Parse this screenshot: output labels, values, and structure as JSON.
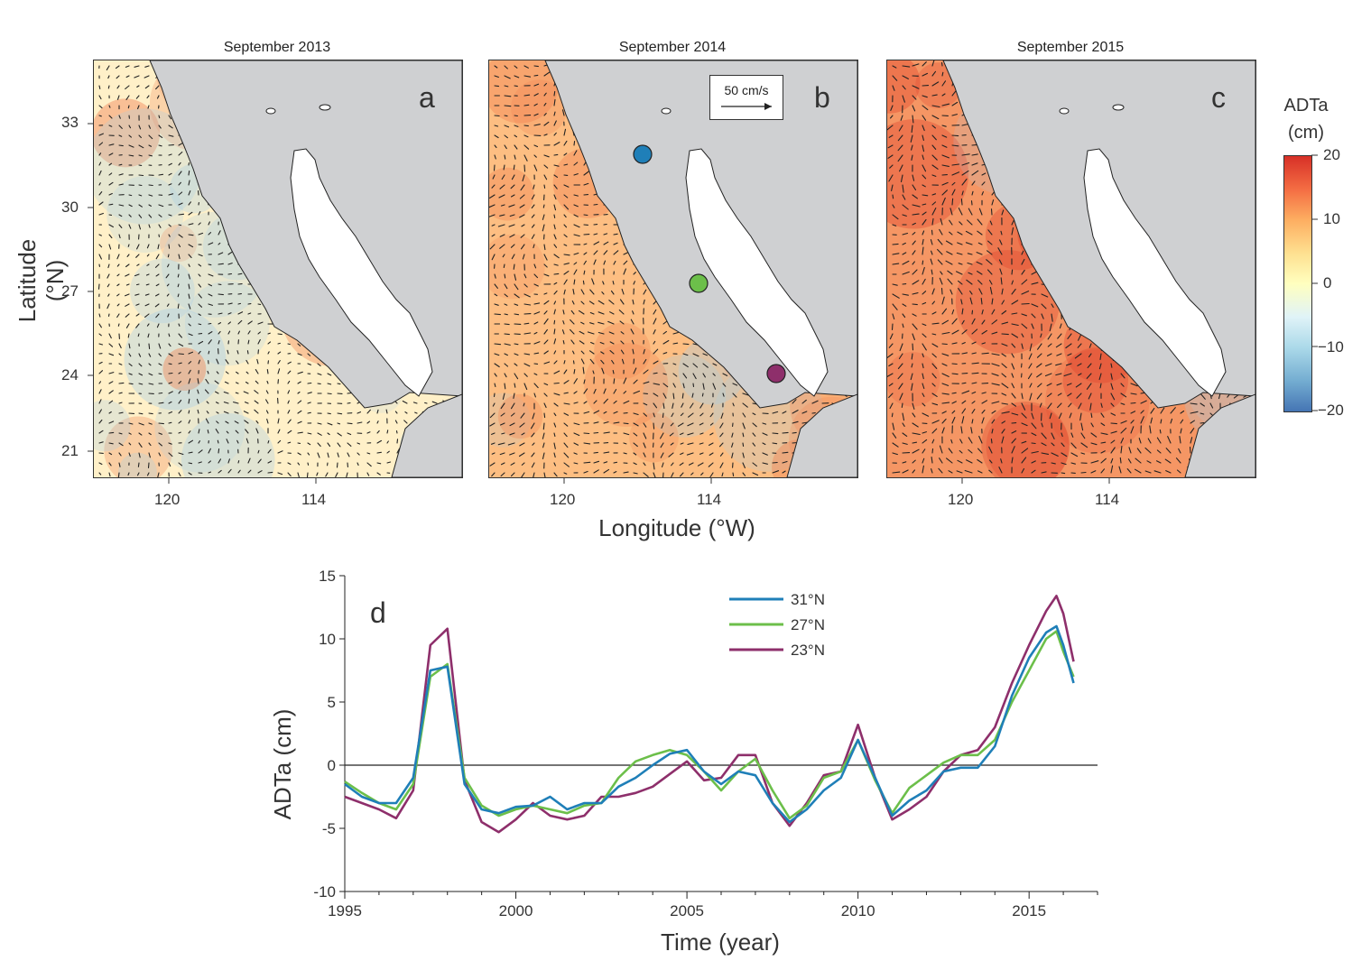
{
  "maps": {
    "panels": [
      {
        "title": "September 2013",
        "letter": "a"
      },
      {
        "title": "September 2014",
        "letter": "b"
      },
      {
        "title": "September 2015",
        "letter": "c"
      }
    ],
    "y_label": "Latitude (°N)",
    "x_label": "Longitude (°W)",
    "lat_ticks": [
      "33",
      "30",
      "27",
      "24",
      "21"
    ],
    "lon_ticks": [
      "120",
      "114"
    ],
    "scale_arrow_label": "50 cm/s",
    "colorbar": {
      "title_line1": "ADTa",
      "title_line2": "(cm)",
      "ticks": [
        "20",
        "10",
        "0",
        "−10",
        "−20"
      ],
      "colors": [
        "#d73027",
        "#f46d43",
        "#fdae61",
        "#fee090",
        "#ffffbf",
        "#e0f3f8",
        "#abd9e9",
        "#74add1",
        "#4575b4"
      ]
    },
    "station_colors": [
      "#1f7fb8",
      "#6cbf4a",
      "#8e2f6b"
    ],
    "land_color": "#cfd0d2"
  },
  "chart_data": {
    "type": "line",
    "panel_letter": "d",
    "xlabel": "Time (year)",
    "ylabel": "ADTa (cm)",
    "xlim": [
      1995,
      2017
    ],
    "ylim": [
      -10,
      15
    ],
    "x_ticks": [
      1995,
      2000,
      2005,
      2010,
      2015
    ],
    "y_ticks": [
      15,
      10,
      5,
      0,
      -5,
      -10
    ],
    "legend": "top-center",
    "series": [
      {
        "name": "31°N",
        "color": "#1f7fb8",
        "x": [
          1995,
          1995.5,
          1996,
          1996.5,
          1997,
          1997.5,
          1998,
          1998.5,
          1999,
          1999.5,
          2000,
          2000.5,
          2001,
          2001.5,
          2002,
          2002.5,
          2003,
          2003.5,
          2004,
          2004.5,
          2005,
          2005.5,
          2006,
          2006.5,
          2007,
          2007.5,
          2008,
          2008.5,
          2009,
          2009.5,
          2010,
          2010.5,
          2011,
          2011.5,
          2012,
          2012.5,
          2013,
          2013.5,
          2014,
          2014.5,
          2015,
          2015.5,
          2015.8,
          2016,
          2016.3
        ],
        "values": [
          -1.5,
          -2.5,
          -3.0,
          -3.0,
          -1.0,
          7.5,
          7.8,
          -1.5,
          -3.5,
          -3.8,
          -3.3,
          -3.2,
          -2.5,
          -3.5,
          -3.0,
          -3.0,
          -1.7,
          -1.0,
          0.0,
          0.9,
          1.2,
          -0.5,
          -1.5,
          -0.5,
          -0.8,
          -3.0,
          -4.5,
          -3.5,
          -2.0,
          -1.0,
          2.0,
          -1.0,
          -4.0,
          -2.8,
          -2.0,
          -0.5,
          -0.2,
          -0.2,
          1.5,
          5.5,
          8.5,
          10.5,
          11.0,
          9.5,
          6.5
        ]
      },
      {
        "name": "27°N",
        "color": "#6cbf4a",
        "x": [
          1995,
          1995.5,
          1996,
          1996.5,
          1997,
          1997.5,
          1998,
          1998.5,
          1999,
          1999.5,
          2000,
          2000.5,
          2001,
          2001.5,
          2002,
          2002.5,
          2003,
          2003.5,
          2004,
          2004.5,
          2005,
          2005.5,
          2006,
          2006.5,
          2007,
          2007.5,
          2008,
          2008.5,
          2009,
          2009.5,
          2010,
          2010.5,
          2011,
          2011.5,
          2012,
          2012.5,
          2013,
          2013.5,
          2014,
          2014.5,
          2015,
          2015.5,
          2015.8,
          2016,
          2016.3
        ],
        "values": [
          -1.3,
          -2.2,
          -3.0,
          -3.5,
          -1.5,
          7.0,
          8.0,
          -1.0,
          -3.2,
          -4.0,
          -3.5,
          -3.2,
          -3.5,
          -3.8,
          -3.2,
          -3.0,
          -1.0,
          0.3,
          0.8,
          1.2,
          0.8,
          -0.5,
          -2.0,
          -0.5,
          0.5,
          -2.0,
          -4.2,
          -3.2,
          -1.0,
          -0.5,
          2.0,
          -1.2,
          -3.8,
          -1.8,
          -0.8,
          0.2,
          0.8,
          0.8,
          2.0,
          5.0,
          7.5,
          10.0,
          10.6,
          9.0,
          7.0
        ]
      },
      {
        "name": "23°N",
        "color": "#8e2f6b",
        "x": [
          1995,
          1995.5,
          1996,
          1996.5,
          1997,
          1997.5,
          1998,
          1998.5,
          1999,
          1999.5,
          2000,
          2000.5,
          2001,
          2001.5,
          2002,
          2002.5,
          2003,
          2003.5,
          2004,
          2004.5,
          2005,
          2005.5,
          2006,
          2006.5,
          2007,
          2007.5,
          2008,
          2008.5,
          2009,
          2009.5,
          2010,
          2010.5,
          2011,
          2011.5,
          2012,
          2012.5,
          2013,
          2013.5,
          2014,
          2014.5,
          2015,
          2015.5,
          2015.8,
          2016,
          2016.3
        ],
        "values": [
          -2.5,
          -3.0,
          -3.5,
          -4.2,
          -2.0,
          9.5,
          10.8,
          -1.2,
          -4.5,
          -5.3,
          -4.3,
          -3.0,
          -4.0,
          -4.3,
          -4.0,
          -2.5,
          -2.5,
          -2.2,
          -1.7,
          -0.7,
          0.3,
          -1.2,
          -1.0,
          0.8,
          0.8,
          -3.0,
          -4.8,
          -3.0,
          -0.8,
          -0.5,
          3.2,
          -1.0,
          -4.3,
          -3.5,
          -2.5,
          -0.5,
          0.8,
          1.2,
          3.0,
          6.5,
          9.5,
          12.2,
          13.4,
          12.0,
          8.2
        ]
      }
    ]
  }
}
